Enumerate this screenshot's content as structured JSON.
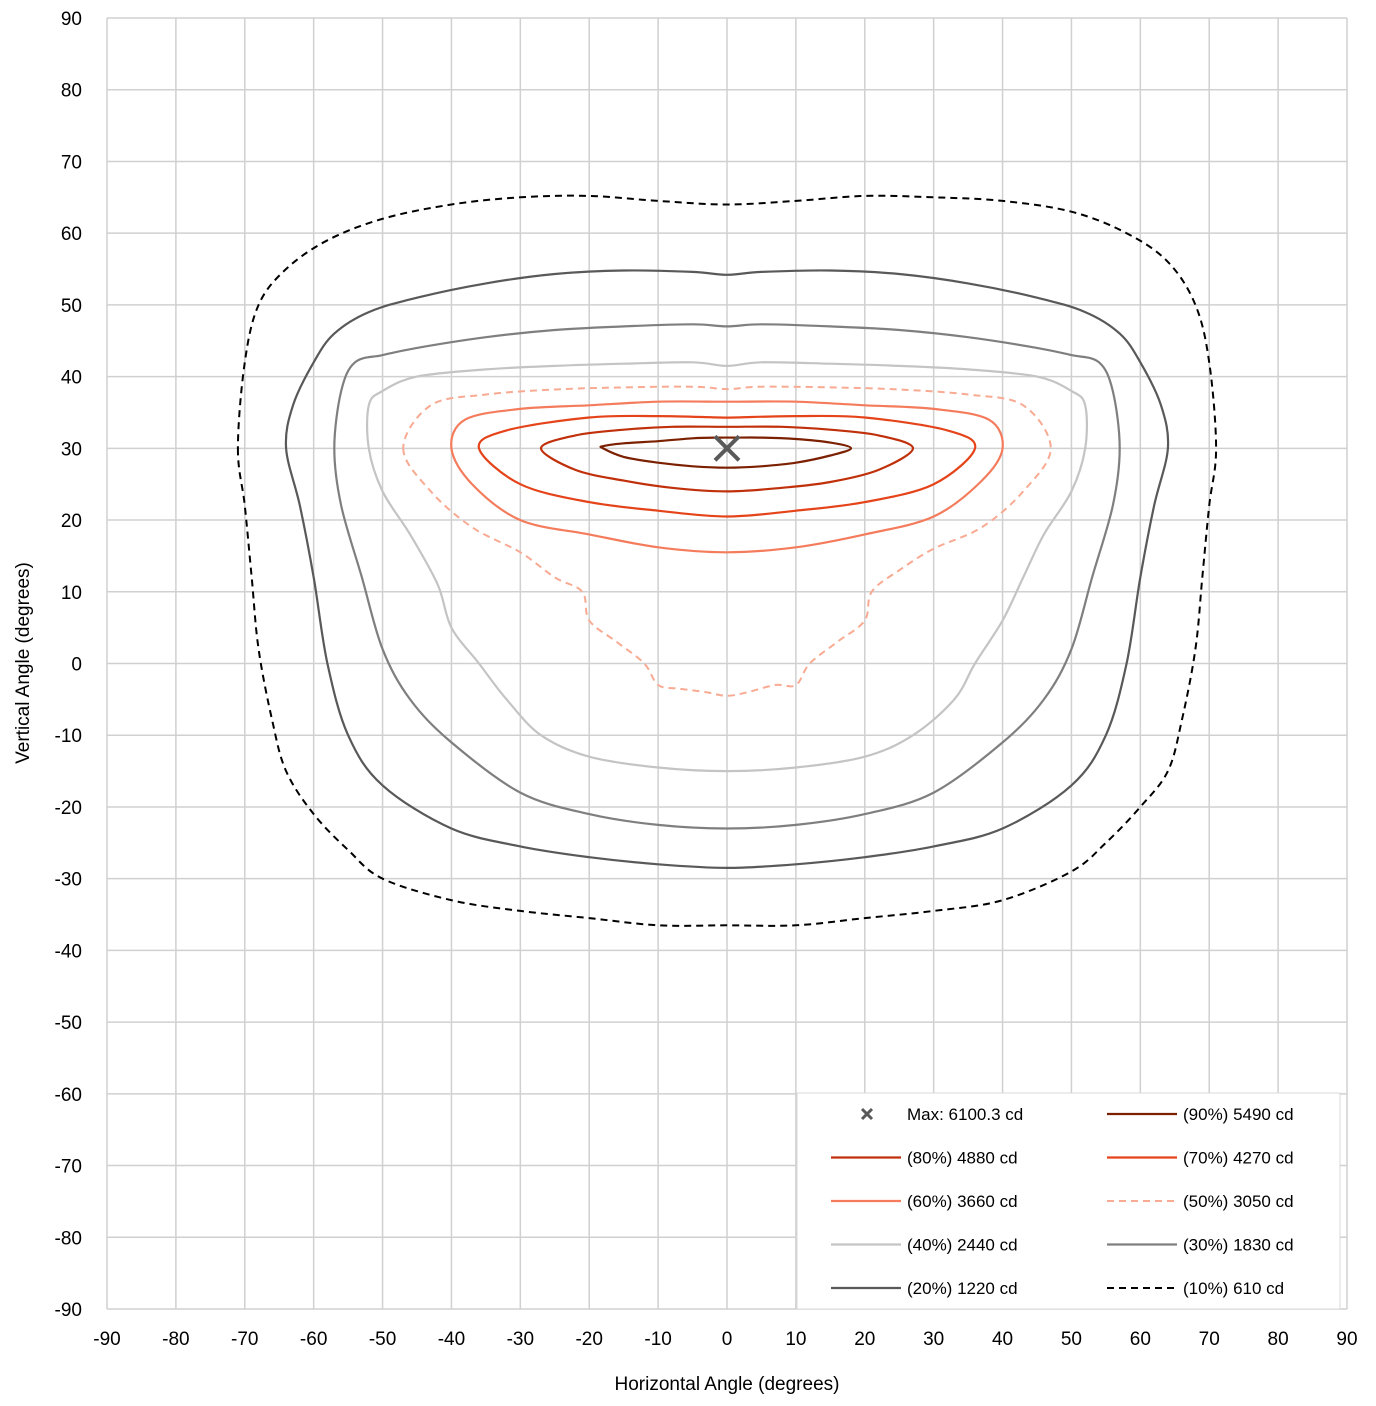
{
  "chart_data": {
    "type": "contour",
    "title": "",
    "xlabel": "Horizontal Angle (degrees)",
    "ylabel": "Vertical Angle (degrees)",
    "xlim": [
      -90,
      90
    ],
    "ylim": [
      -90,
      90
    ],
    "xticks": [
      -90,
      -80,
      -70,
      -60,
      -50,
      -40,
      -30,
      -20,
      -10,
      0,
      10,
      20,
      30,
      40,
      50,
      60,
      70,
      80,
      90
    ],
    "yticks": [
      90,
      80,
      70,
      60,
      50,
      40,
      30,
      20,
      10,
      0,
      -10,
      -20,
      -30,
      -40,
      -50,
      -60,
      -70,
      -80,
      -90
    ],
    "grid": true,
    "legend_position": "bottom-right",
    "max_point": {
      "label": "Max: 6100.3 cd",
      "x": 0,
      "y": 30,
      "marker": "x",
      "color": "#595959"
    },
    "series": [
      {
        "name": "(90%) 5490 cd",
        "color": "#7b2000",
        "dash": "solid",
        "points": [
          [
            -18,
            30
          ],
          [
            -15,
            28.8
          ],
          [
            -10,
            28
          ],
          [
            -5,
            27.5
          ],
          [
            0,
            27.3
          ],
          [
            5,
            27.5
          ],
          [
            10,
            28
          ],
          [
            15,
            29
          ],
          [
            18,
            30
          ],
          [
            15,
            30.8
          ],
          [
            10,
            31.3
          ],
          [
            5,
            31.5
          ],
          [
            1,
            31.5
          ],
          [
            -1,
            31.5
          ],
          [
            -5,
            31.4
          ],
          [
            -10,
            31
          ],
          [
            -15,
            30.7
          ],
          [
            -18,
            30.3
          ]
        ]
      },
      {
        "name": "(80%) 4880 cd",
        "color": "#c0300a",
        "dash": "solid",
        "points": [
          [
            -27,
            30
          ],
          [
            -22,
            27
          ],
          [
            -15,
            25.5
          ],
          [
            -8,
            24.5
          ],
          [
            0,
            24
          ],
          [
            8,
            24.5
          ],
          [
            15,
            25.3
          ],
          [
            22,
            27
          ],
          [
            27,
            30
          ],
          [
            22,
            31.8
          ],
          [
            15,
            32.6
          ],
          [
            8,
            33
          ],
          [
            1,
            33
          ],
          [
            -1,
            33
          ],
          [
            -8,
            33
          ],
          [
            -15,
            32.6
          ],
          [
            -22,
            31.8
          ]
        ]
      },
      {
        "name": "(70%) 4270 cd",
        "color": "#e5441a",
        "dash": "solid",
        "points": [
          [
            -36,
            30
          ],
          [
            -30,
            25
          ],
          [
            -20,
            22.5
          ],
          [
            -10,
            21.3
          ],
          [
            0,
            20.5
          ],
          [
            10,
            21.3
          ],
          [
            20,
            22.5
          ],
          [
            30,
            25
          ],
          [
            36,
            30
          ],
          [
            32,
            32.5
          ],
          [
            20,
            34.3
          ],
          [
            10,
            34.5
          ],
          [
            1,
            34.3
          ],
          [
            -1,
            34.3
          ],
          [
            -10,
            34.5
          ],
          [
            -20,
            34.3
          ],
          [
            -32,
            32.5
          ]
        ]
      },
      {
        "name": "(60%) 3660 cd",
        "color": "#f47c5c",
        "dash": "solid",
        "points": [
          [
            -40,
            30
          ],
          [
            -37,
            25
          ],
          [
            -30,
            20
          ],
          [
            -20,
            18
          ],
          [
            -10,
            16.2
          ],
          [
            0,
            15.5
          ],
          [
            10,
            16.2
          ],
          [
            20,
            18
          ],
          [
            30,
            20.5
          ],
          [
            37,
            25.5
          ],
          [
            40,
            30
          ],
          [
            38,
            34
          ],
          [
            30,
            35.5
          ],
          [
            20,
            36
          ],
          [
            10,
            36.5
          ],
          [
            1,
            36.5
          ],
          [
            -1,
            36.5
          ],
          [
            -10,
            36.5
          ],
          [
            -20,
            36
          ],
          [
            -30,
            35.5
          ],
          [
            -38,
            34
          ]
        ]
      },
      {
        "name": "(50%) 3050 cd",
        "color": "#f8aa92",
        "dash": "dash",
        "points": [
          [
            -47,
            30
          ],
          [
            -43,
            24
          ],
          [
            -37,
            19
          ],
          [
            -30,
            15.5
          ],
          [
            -25,
            12
          ],
          [
            -21,
            10
          ],
          [
            -20,
            6
          ],
          [
            -16,
            3
          ],
          [
            -12,
            0
          ],
          [
            -10,
            -3
          ],
          [
            -7,
            -3.5
          ],
          [
            -3,
            -4
          ],
          [
            0,
            -4.5
          ],
          [
            3,
            -4
          ],
          [
            7,
            -3
          ],
          [
            10,
            -3
          ],
          [
            12,
            0
          ],
          [
            16,
            3
          ],
          [
            20,
            6
          ],
          [
            21,
            10
          ],
          [
            25,
            13
          ],
          [
            30,
            16
          ],
          [
            37,
            19
          ],
          [
            43,
            24
          ],
          [
            47,
            30
          ],
          [
            43,
            36
          ],
          [
            35,
            37.5
          ],
          [
            25,
            38.2
          ],
          [
            15,
            38.5
          ],
          [
            5,
            38.6
          ],
          [
            1,
            38.3
          ],
          [
            -1,
            38.3
          ],
          [
            -5,
            38.6
          ],
          [
            -15,
            38.5
          ],
          [
            -25,
            38.2
          ],
          [
            -35,
            37.5
          ],
          [
            -43,
            36
          ]
        ]
      },
      {
        "name": "(40%) 2440 cd",
        "color": "#c4c4c4",
        "dash": "solid",
        "points": [
          [
            -52,
            30
          ],
          [
            -50,
            24
          ],
          [
            -46,
            18
          ],
          [
            -42,
            11
          ],
          [
            -40,
            5
          ],
          [
            -36,
            0
          ],
          [
            -32,
            -5
          ],
          [
            -27,
            -10
          ],
          [
            -20,
            -13
          ],
          [
            -10,
            -14.5
          ],
          [
            0,
            -15
          ],
          [
            10,
            -14.5
          ],
          [
            20,
            -13
          ],
          [
            27,
            -10
          ],
          [
            33,
            -5
          ],
          [
            36,
            0
          ],
          [
            40,
            6
          ],
          [
            43,
            12
          ],
          [
            46,
            18
          ],
          [
            50,
            24
          ],
          [
            52,
            30
          ],
          [
            52,
            36
          ],
          [
            50,
            38
          ],
          [
            45,
            40
          ],
          [
            35,
            41
          ],
          [
            25,
            41.5
          ],
          [
            15,
            41.8
          ],
          [
            5,
            42
          ],
          [
            0,
            41.5
          ],
          [
            -5,
            42
          ],
          [
            -15,
            41.8
          ],
          [
            -25,
            41.5
          ],
          [
            -35,
            41
          ],
          [
            -45,
            40
          ],
          [
            -50,
            38
          ],
          [
            -52,
            36
          ]
        ]
      },
      {
        "name": "(30%) 1830 cd",
        "color": "#7f7f7f",
        "dash": "solid",
        "points": [
          [
            -57,
            30
          ],
          [
            -56,
            22
          ],
          [
            -53,
            12
          ],
          [
            -50,
            2
          ],
          [
            -46,
            -5
          ],
          [
            -40,
            -11
          ],
          [
            -30,
            -18
          ],
          [
            -20,
            -21
          ],
          [
            -10,
            -22.5
          ],
          [
            0,
            -23
          ],
          [
            10,
            -22.5
          ],
          [
            20,
            -21
          ],
          [
            30,
            -18
          ],
          [
            40,
            -11
          ],
          [
            46,
            -5
          ],
          [
            50,
            2
          ],
          [
            53,
            12
          ],
          [
            56,
            22
          ],
          [
            57,
            30
          ],
          [
            56,
            38
          ],
          [
            54,
            42
          ],
          [
            50,
            43
          ],
          [
            45,
            44
          ],
          [
            35,
            45.5
          ],
          [
            25,
            46.5
          ],
          [
            15,
            47
          ],
          [
            5,
            47.3
          ],
          [
            0,
            47
          ],
          [
            -5,
            47.3
          ],
          [
            -15,
            47
          ],
          [
            -25,
            46.5
          ],
          [
            -35,
            45.5
          ],
          [
            -45,
            44
          ],
          [
            -50,
            43
          ],
          [
            -54,
            42
          ],
          [
            -56,
            38
          ]
        ]
      },
      {
        "name": "(20%) 1220 cd",
        "color": "#595959",
        "dash": "solid",
        "points": [
          [
            -64,
            30
          ],
          [
            -62,
            22
          ],
          [
            -60,
            12
          ],
          [
            -58,
            0
          ],
          [
            -55,
            -10
          ],
          [
            -50,
            -17
          ],
          [
            -40,
            -23
          ],
          [
            -30,
            -25.5
          ],
          [
            -20,
            -27
          ],
          [
            -10,
            -28
          ],
          [
            0,
            -28.5
          ],
          [
            10,
            -28
          ],
          [
            20,
            -27
          ],
          [
            30,
            -25.5
          ],
          [
            40,
            -23
          ],
          [
            50,
            -17
          ],
          [
            55,
            -10
          ],
          [
            58,
            0
          ],
          [
            60,
            12
          ],
          [
            62,
            22
          ],
          [
            64,
            30
          ],
          [
            63,
            36
          ],
          [
            60,
            42
          ],
          [
            57,
            46
          ],
          [
            52,
            49
          ],
          [
            45,
            51
          ],
          [
            35,
            53
          ],
          [
            25,
            54.3
          ],
          [
            15,
            54.8
          ],
          [
            5,
            54.6
          ],
          [
            0,
            54.2
          ],
          [
            -5,
            54.6
          ],
          [
            -15,
            54.8
          ],
          [
            -25,
            54.3
          ],
          [
            -35,
            53
          ],
          [
            -45,
            51
          ],
          [
            -52,
            49
          ],
          [
            -57,
            46
          ],
          [
            -60,
            42
          ],
          [
            -63,
            36
          ]
        ]
      },
      {
        "name": "(10%) 610 cd",
        "color": "#000000",
        "dash": "dash",
        "points": [
          [
            -71,
            30
          ],
          [
            -70,
            22
          ],
          [
            -69,
            12
          ],
          [
            -68,
            2
          ],
          [
            -66,
            -8
          ],
          [
            -64,
            -15
          ],
          [
            -60,
            -21
          ],
          [
            -55,
            -26
          ],
          [
            -50,
            -30
          ],
          [
            -40,
            -33
          ],
          [
            -30,
            -34.5
          ],
          [
            -20,
            -35.5
          ],
          [
            -10,
            -36.5
          ],
          [
            0,
            -36.5
          ],
          [
            10,
            -36.5
          ],
          [
            20,
            -35.5
          ],
          [
            30,
            -34.5
          ],
          [
            40,
            -33
          ],
          [
            50,
            -29
          ],
          [
            55,
            -25
          ],
          [
            60,
            -20
          ],
          [
            64,
            -15
          ],
          [
            66,
            -8
          ],
          [
            68,
            2
          ],
          [
            69,
            12
          ],
          [
            70,
            22
          ],
          [
            71,
            30
          ],
          [
            70,
            42
          ],
          [
            68,
            50
          ],
          [
            64,
            56
          ],
          [
            58,
            60
          ],
          [
            50,
            63
          ],
          [
            40,
            64.5
          ],
          [
            30,
            65
          ],
          [
            20,
            65.2
          ],
          [
            10,
            64.5
          ],
          [
            0,
            64
          ],
          [
            -10,
            64.5
          ],
          [
            -20,
            65.2
          ],
          [
            -30,
            65
          ],
          [
            -40,
            64
          ],
          [
            -50,
            62
          ],
          [
            -58,
            59
          ],
          [
            -64,
            55
          ],
          [
            -68,
            50
          ],
          [
            -70,
            42
          ]
        ]
      }
    ]
  }
}
